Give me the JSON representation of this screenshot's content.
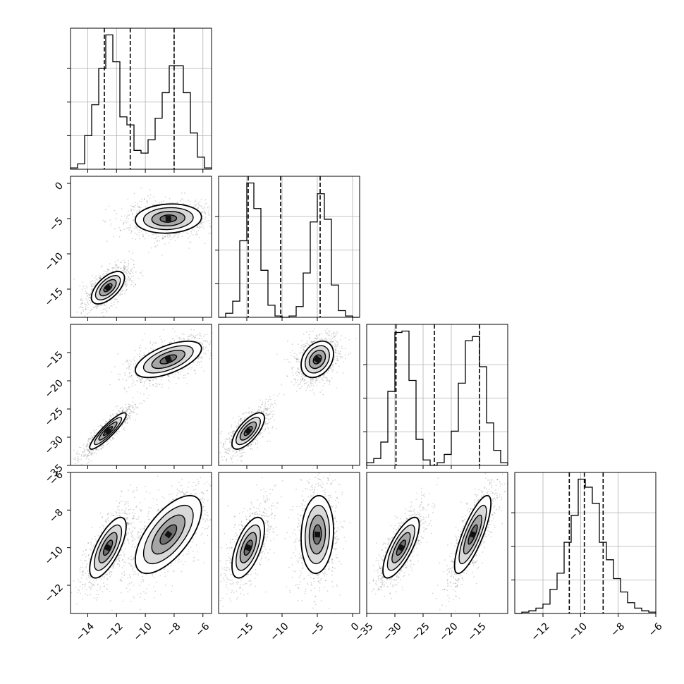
{
  "chart_data": {
    "type": "corner",
    "title": "",
    "grid": true,
    "num_parameters": 4,
    "parameters": [
      {
        "id": "p0",
        "range": [
          -15.2,
          -5.4
        ],
        "ticks": [
          -14,
          -12,
          -10,
          -8,
          -6
        ],
        "tick_labels": [
          "−14",
          "−12",
          "−10",
          "−8",
          "−6"
        ],
        "quantiles": [
          -12.85,
          -11.05,
          -8.0
        ],
        "modes": [
          {
            "mean": -12.6,
            "sd": 0.55,
            "weight": 1.0
          },
          {
            "mean": -8.4,
            "sd": 0.95,
            "weight": 1.0
          }
        ],
        "histogram": {
          "edges": [
            -15.2,
            -14.71,
            -14.22,
            -13.73,
            -13.24,
            -12.75,
            -12.26,
            -11.77,
            -11.28,
            -10.79,
            -10.3,
            -9.81,
            -9.32,
            -8.83,
            -8.34,
            -7.85,
            -7.36,
            -6.87,
            -6.38,
            -5.89,
            -5.4
          ],
          "counts": [
            1,
            4,
            25,
            48,
            75,
            100,
            80,
            39,
            33,
            14,
            12,
            22,
            38,
            57,
            77,
            77,
            57,
            27,
            9,
            1
          ]
        }
      },
      {
        "id": "p1",
        "range": [
          -19.0,
          1.0
        ],
        "ticks": [
          -15,
          -10,
          -5,
          0
        ],
        "tick_labels": [
          "−15",
          "−10",
          "−5",
          "0"
        ],
        "quantiles": [
          -14.8,
          -10.2,
          -4.6
        ],
        "modes": [
          {
            "mean": -14.8,
            "sd": 1.0,
            "weight": 1.0
          },
          {
            "mean": -4.9,
            "sd": 1.0,
            "weight": 1.0
          }
        ],
        "histogram": {
          "edges": [
            -19,
            -18,
            -17,
            -16,
            -15,
            -14,
            -13,
            -12,
            -11,
            -10,
            -9,
            -8,
            -7,
            -6,
            -5,
            -4,
            -3,
            -2,
            -1,
            0,
            1
          ],
          "counts": [
            0,
            3,
            12,
            57,
            100,
            81,
            35,
            9,
            1,
            0,
            1,
            8,
            33,
            71,
            92,
            73,
            24,
            5,
            1,
            0
          ]
        }
      },
      {
        "id": "p2",
        "range": [
          -35.0,
          -10.0
        ],
        "ticks": [
          -35,
          -30,
          -25,
          -20,
          -15
        ],
        "tick_labels": [
          "−35",
          "−30",
          "−25",
          "−20",
          "−15"
        ],
        "quantiles": [
          -29.8,
          -23.0,
          -15.0
        ],
        "modes": [
          {
            "mean": -28.9,
            "sd": 1.4,
            "weight": 1.0
          },
          {
            "mean": -16.2,
            "sd": 1.4,
            "weight": 1.0
          }
        ],
        "histogram": {
          "edges": [
            -35,
            -33.75,
            -32.5,
            -31.25,
            -30,
            -28.75,
            -27.5,
            -26.25,
            -25,
            -23.75,
            -22.5,
            -21.25,
            -20,
            -18.75,
            -17.5,
            -16.25,
            -15,
            -13.75,
            -12.5,
            -11.25,
            -10
          ],
          "counts": [
            2,
            5,
            17,
            54,
            97,
            98,
            62,
            19,
            4,
            0,
            2,
            8,
            25,
            60,
            91,
            94,
            72,
            31,
            11,
            2
          ]
        }
      },
      {
        "id": "p3",
        "range": [
          -13.5,
          -6.0
        ],
        "ticks": [
          -12,
          -10,
          -8,
          -6
        ],
        "tick_labels": [
          "−12",
          "−10",
          "−8",
          "−6"
        ],
        "quantiles": [
          -10.6,
          -9.8,
          -8.8
        ],
        "modes": [
          {
            "mean": -9.7,
            "sd": 0.9,
            "weight": 1.0
          }
        ],
        "histogram": {
          "edges": [
            -13.5,
            -13.125,
            -12.75,
            -12.375,
            -12.0,
            -11.625,
            -11.25,
            -10.875,
            -10.5,
            -10.125,
            -9.75,
            -9.375,
            -9.0,
            -8.625,
            -8.25,
            -7.875,
            -7.5,
            -7.125,
            -6.75,
            -6.375,
            -6.0
          ],
          "counts": [
            0,
            1,
            2,
            4,
            7,
            18,
            30,
            53,
            73,
            100,
            94,
            82,
            53,
            40,
            26,
            16,
            8,
            4,
            2,
            1
          ]
        }
      }
    ],
    "left_axis_params": [
      "p1",
      "p2",
      "p3"
    ],
    "bottom_axis_params": [
      "p0",
      "p1",
      "p2",
      "p3"
    ],
    "joint_density": [
      {
        "x": "p0",
        "y": "p1",
        "modes": [
          {
            "x": -12.6,
            "y": -14.8,
            "sx": 0.5,
            "sy": 1.0,
            "rho": 0.6,
            "w": 1.0
          },
          {
            "x": -8.4,
            "y": -5.0,
            "sx": 1.0,
            "sy": 0.9,
            "rho": 0.1,
            "w": 1.0
          }
        ]
      },
      {
        "x": "p0",
        "y": "p2",
        "modes": [
          {
            "x": -12.6,
            "y": -28.9,
            "sx": 0.55,
            "sy": 1.4,
            "rho": 0.9,
            "w": 1.0
          },
          {
            "x": -8.4,
            "y": -16.2,
            "sx": 1.0,
            "sy": 1.4,
            "rho": 0.6,
            "w": 1.0
          }
        ]
      },
      {
        "x": "p0",
        "y": "p3",
        "modes": [
          {
            "x": -12.6,
            "y": -10.0,
            "sx": 0.55,
            "sy": 0.7,
            "rho": 0.7,
            "w": 1.0
          },
          {
            "x": -8.4,
            "y": -9.3,
            "sx": 1.0,
            "sy": 0.9,
            "rho": 0.65,
            "w": 1.0
          }
        ]
      },
      {
        "x": "p1",
        "y": "p2",
        "modes": [
          {
            "x": -14.8,
            "y": -28.9,
            "sx": 1.0,
            "sy": 1.4,
            "rho": 0.7,
            "w": 1.0
          },
          {
            "x": -5.0,
            "y": -16.2,
            "sx": 1.0,
            "sy": 1.4,
            "rho": 0.3,
            "w": 1.0
          }
        ]
      },
      {
        "x": "p1",
        "y": "p3",
        "modes": [
          {
            "x": -14.8,
            "y": -10.0,
            "sx": 1.0,
            "sy": 0.7,
            "rho": 0.6,
            "w": 1.0
          },
          {
            "x": -5.0,
            "y": -9.3,
            "sx": 1.0,
            "sy": 0.9,
            "rho": 0.1,
            "w": 1.0
          }
        ]
      },
      {
        "x": "p2",
        "y": "p3",
        "modes": [
          {
            "x": -28.9,
            "y": -10.0,
            "sx": 1.4,
            "sy": 0.7,
            "rho": 0.75,
            "w": 1.0
          },
          {
            "x": -16.2,
            "y": -9.3,
            "sx": 1.4,
            "sy": 0.9,
            "rho": 0.8,
            "w": 1.0
          }
        ]
      }
    ]
  }
}
